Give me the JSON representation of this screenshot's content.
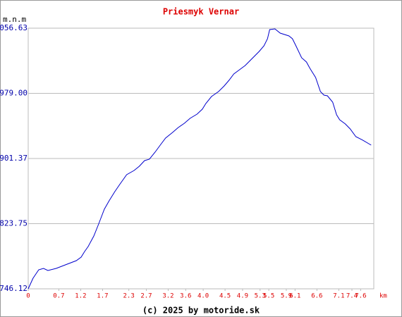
{
  "chart_data": {
    "type": "line",
    "title": "Priesmyk Vernar",
    "y_label": "m.n.m",
    "x_label": "km",
    "footer": "(c) 2025 by motoride.sk",
    "x": [
      0,
      0.11,
      0.24,
      0.35,
      0.45,
      0.64,
      0.89,
      1.1,
      1.21,
      1.29,
      1.37,
      1.5,
      1.61,
      1.74,
      1.85,
      1.98,
      2.09,
      2.17,
      2.25,
      2.42,
      2.54,
      2.66,
      2.77,
      2.9,
      3.03,
      3.14,
      3.3,
      3.43,
      3.57,
      3.7,
      3.86,
      3.98,
      4.06,
      4.19,
      4.35,
      4.48,
      4.59,
      4.7,
      4.83,
      4.96,
      5.12,
      5.28,
      5.39,
      5.47,
      5.52,
      5.64,
      5.76,
      5.96,
      6.04,
      6.12,
      6.25,
      6.36,
      6.44,
      6.57,
      6.68,
      6.76,
      6.84,
      6.96,
      7.05,
      7.12,
      7.25,
      7.36,
      7.49,
      7.65,
      7.84
    ],
    "series": [
      {
        "color": "#0000cc",
        "values": [
          746.12,
          758.71,
          768.78,
          770.46,
          767.94,
          770.46,
          775.49,
          779.69,
          783.88,
          790.6,
          796.47,
          809.06,
          823.33,
          840.95,
          851.02,
          861.93,
          870.32,
          876.2,
          882.07,
          887.11,
          892.14,
          898.86,
          900.54,
          908.93,
          918.16,
          925.71,
          932.42,
          938.3,
          943.33,
          949.21,
          954.24,
          960.12,
          966.83,
          975.22,
          981.1,
          987.81,
          994.52,
          1002.08,
          1007.11,
          1012.15,
          1020.54,
          1028.93,
          1035.65,
          1044.04,
          1054.95,
          1055.79,
          1050.75,
          1047.4,
          1044.04,
          1035.65,
          1021.38,
          1016.35,
          1008.8,
          997.89,
          981.1,
          976.9,
          976.06,
          968.51,
          953.4,
          947.53,
          942.49,
          936.62,
          927.39,
          923.19,
          917.32
        ]
      }
    ],
    "xlim": [
      0,
      7.9
    ],
    "xticks": [
      0,
      0.7,
      1.2,
      1.7,
      2.3,
      2.7,
      3.2,
      3.6,
      {
        "value": 4.0,
        "label": "4.0"
      },
      4.5,
      4.9,
      5.3,
      5.5,
      5.9,
      6.1,
      6.6,
      7.1,
      7.4,
      7.6
    ],
    "ylim": [
      746.12,
      1056.63
    ],
    "yticks": [
      746.12,
      823.75,
      901.37,
      {
        "value": 979,
        "label": "979.00"
      },
      1056.63
    ],
    "grid": true
  }
}
